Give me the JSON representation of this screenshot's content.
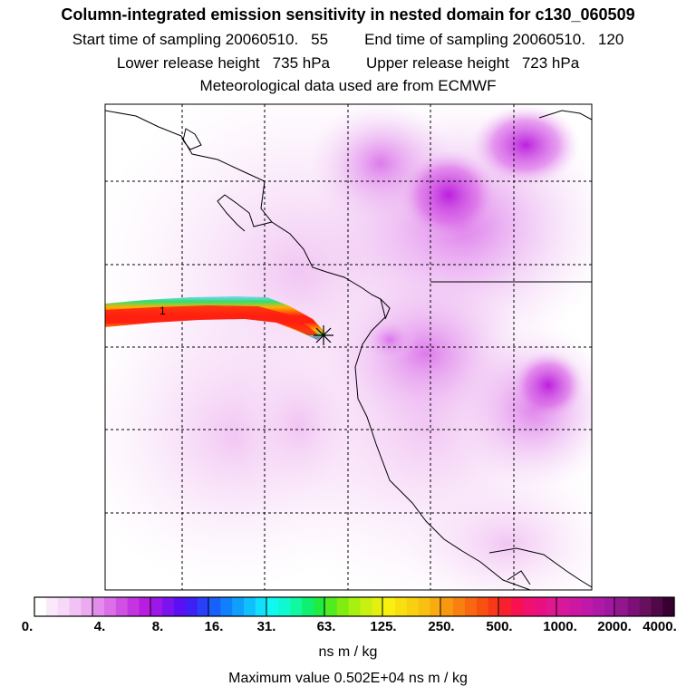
{
  "header": {
    "title": "Column-integrated emission sensitivity in nested domain for c130_060509",
    "start_label": "Start time of sampling 20060510.",
    "start_value": "55",
    "end_label": "End time of sampling 20060510.",
    "end_value": "120",
    "lower_label": "Lower release height",
    "lower_value": "735 hPa",
    "upper_label": "Upper release height",
    "upper_value": "723 hPa",
    "met_line": "Meteorological data used are from ECMWF"
  },
  "map": {
    "release_marker_label": "1",
    "release_site_icon": "star-cross-icon"
  },
  "colorbar": {
    "tick_labels": [
      "0.",
      "4.",
      "8.",
      "16.",
      "31.",
      "63.",
      "125.",
      "250.",
      "500.",
      "1000.",
      "2000.",
      "4000."
    ],
    "units": "ns m / kg",
    "max_value_text": "Maximum value  0.502E+04 ns m / kg"
  },
  "colors": {
    "low": "#f6d8f6",
    "mid": "#e58ae8",
    "high": "#c020e0",
    "plume_core": "#ff2010",
    "plume_outer": "#ff8800"
  }
}
